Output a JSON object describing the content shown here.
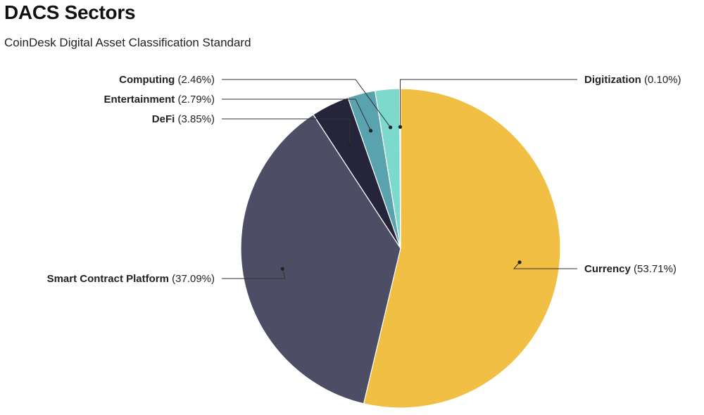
{
  "title": "DACS Sectors",
  "subtitle": "CoinDesk Digital Asset Classification Standard",
  "chart_data": {
    "type": "pie",
    "title": "DACS Sectors",
    "subtitle": "CoinDesk Digital Asset Classification Standard",
    "slices": [
      {
        "name": "Currency",
        "value": 53.71,
        "label_text": "(53.71%)",
        "color": "#F0BF43"
      },
      {
        "name": "Smart Contract Platform",
        "value": 37.09,
        "label_text": "(37.09%)",
        "color": "#4D4E65"
      },
      {
        "name": "DeFi",
        "value": 3.85,
        "label_text": "(3.85%)",
        "color": "#25243A"
      },
      {
        "name": "Entertainment",
        "value": 2.79,
        "label_text": "(2.79%)",
        "color": "#59A2AE"
      },
      {
        "name": "Computing",
        "value": 2.46,
        "label_text": "(2.46%)",
        "color": "#7DD9CC"
      },
      {
        "name": "Digitization",
        "value": 0.1,
        "label_text": "(0.10%)",
        "color": "#9FE6DB"
      }
    ]
  }
}
